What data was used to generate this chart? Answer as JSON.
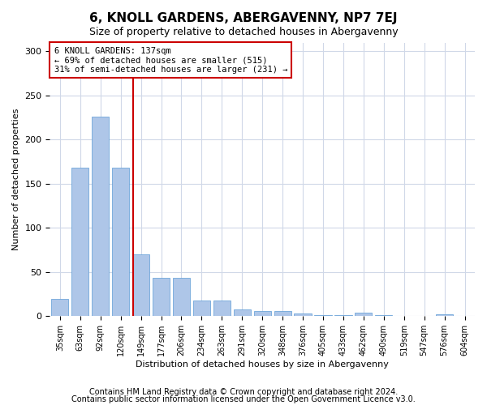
{
  "title": "6, KNOLL GARDENS, ABERGAVENNY, NP7 7EJ",
  "subtitle": "Size of property relative to detached houses in Abergavenny",
  "xlabel": "Distribution of detached houses by size in Abergavenny",
  "ylabel": "Number of detached properties",
  "categories": [
    "35sqm",
    "63sqm",
    "92sqm",
    "120sqm",
    "149sqm",
    "177sqm",
    "206sqm",
    "234sqm",
    "263sqm",
    "291sqm",
    "320sqm",
    "348sqm",
    "376sqm",
    "405sqm",
    "433sqm",
    "462sqm",
    "490sqm",
    "519sqm",
    "547sqm",
    "576sqm",
    "604sqm"
  ],
  "values": [
    20,
    168,
    226,
    168,
    70,
    43,
    43,
    18,
    18,
    8,
    6,
    6,
    3,
    1,
    1,
    4,
    1,
    0,
    0,
    2,
    0
  ],
  "bar_color": "#aec6e8",
  "bar_edge_color": "#5b9bd5",
  "grid_color": "#d0d8e8",
  "vline_x": 3.62,
  "vline_color": "#cc0000",
  "annotation_line1": "6 KNOLL GARDENS: 137sqm",
  "annotation_line2": "← 69% of detached houses are smaller (515)",
  "annotation_line3": "31% of semi-detached houses are larger (231) →",
  "annotation_box_color": "#cc0000",
  "ylim": [
    0,
    310
  ],
  "yticks": [
    0,
    50,
    100,
    150,
    200,
    250,
    300
  ],
  "footnote1": "Contains HM Land Registry data © Crown copyright and database right 2024.",
  "footnote2": "Contains public sector information licensed under the Open Government Licence v3.0.",
  "title_fontsize": 11,
  "subtitle_fontsize": 9,
  "footnote_fontsize": 7,
  "annotation_fontsize": 7.5,
  "background_color": "#ffffff"
}
